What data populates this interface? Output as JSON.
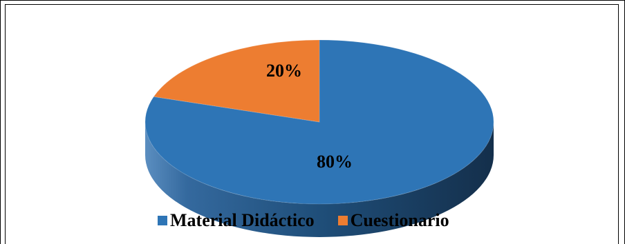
{
  "chart_data": {
    "type": "pie",
    "style": "3d",
    "title": "",
    "categories": [
      "Material Didáctico",
      "Cuestionario"
    ],
    "values": [
      80,
      20
    ],
    "data_labels": [
      "80%",
      "20%"
    ],
    "colors": [
      "#2e75b6",
      "#ed7d31"
    ],
    "side_colors": [
      "#1f4e79",
      "#b05a1e"
    ],
    "legend_position": "bottom"
  }
}
